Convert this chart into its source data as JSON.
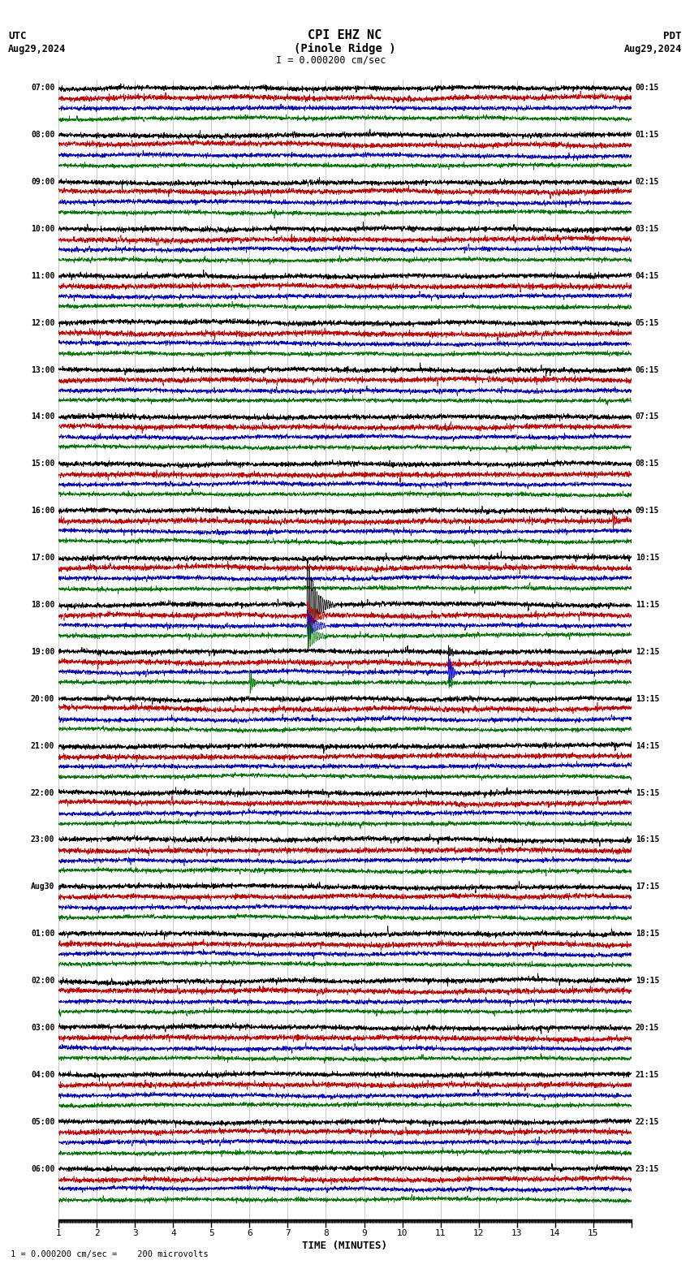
{
  "title_line1": "CPI EHZ NC",
  "title_line2": "(Pinole Ridge )",
  "scale_text": "= 0.000200 cm/sec",
  "utc_label": "UTC",
  "utc_date": "Aug29,2024",
  "pdt_label": "PDT",
  "pdt_date": "Aug29,2024",
  "xlabel": "TIME (MINUTES)",
  "footer_text": "1 = 0.000200 cm/sec =    200 microvolts",
  "xmin": 0,
  "xmax": 15,
  "background_color": "#ffffff",
  "trace_colors": [
    "#000000",
    "#cc0000",
    "#0000cc",
    "#007700"
  ],
  "grid_color": "#777777",
  "left_times": [
    "07:00",
    "08:00",
    "09:00",
    "10:00",
    "11:00",
    "12:00",
    "13:00",
    "14:00",
    "15:00",
    "16:00",
    "17:00",
    "18:00",
    "19:00",
    "20:00",
    "21:00",
    "22:00",
    "23:00",
    "Aug30",
    "01:00",
    "02:00",
    "03:00",
    "04:00",
    "05:00",
    "06:00"
  ],
  "right_times": [
    "00:15",
    "01:15",
    "02:15",
    "03:15",
    "04:15",
    "05:15",
    "06:15",
    "07:15",
    "08:15",
    "09:15",
    "10:15",
    "11:15",
    "12:15",
    "13:15",
    "14:15",
    "15:15",
    "16:15",
    "17:15",
    "18:15",
    "19:15",
    "20:15",
    "21:15",
    "22:15",
    "23:15"
  ],
  "n_groups": 24,
  "traces_per_group": 4,
  "trace_amplitude": 0.3,
  "noise_seed": 12345,
  "fig_width": 8.5,
  "fig_height": 15.84,
  "dpi": 100
}
